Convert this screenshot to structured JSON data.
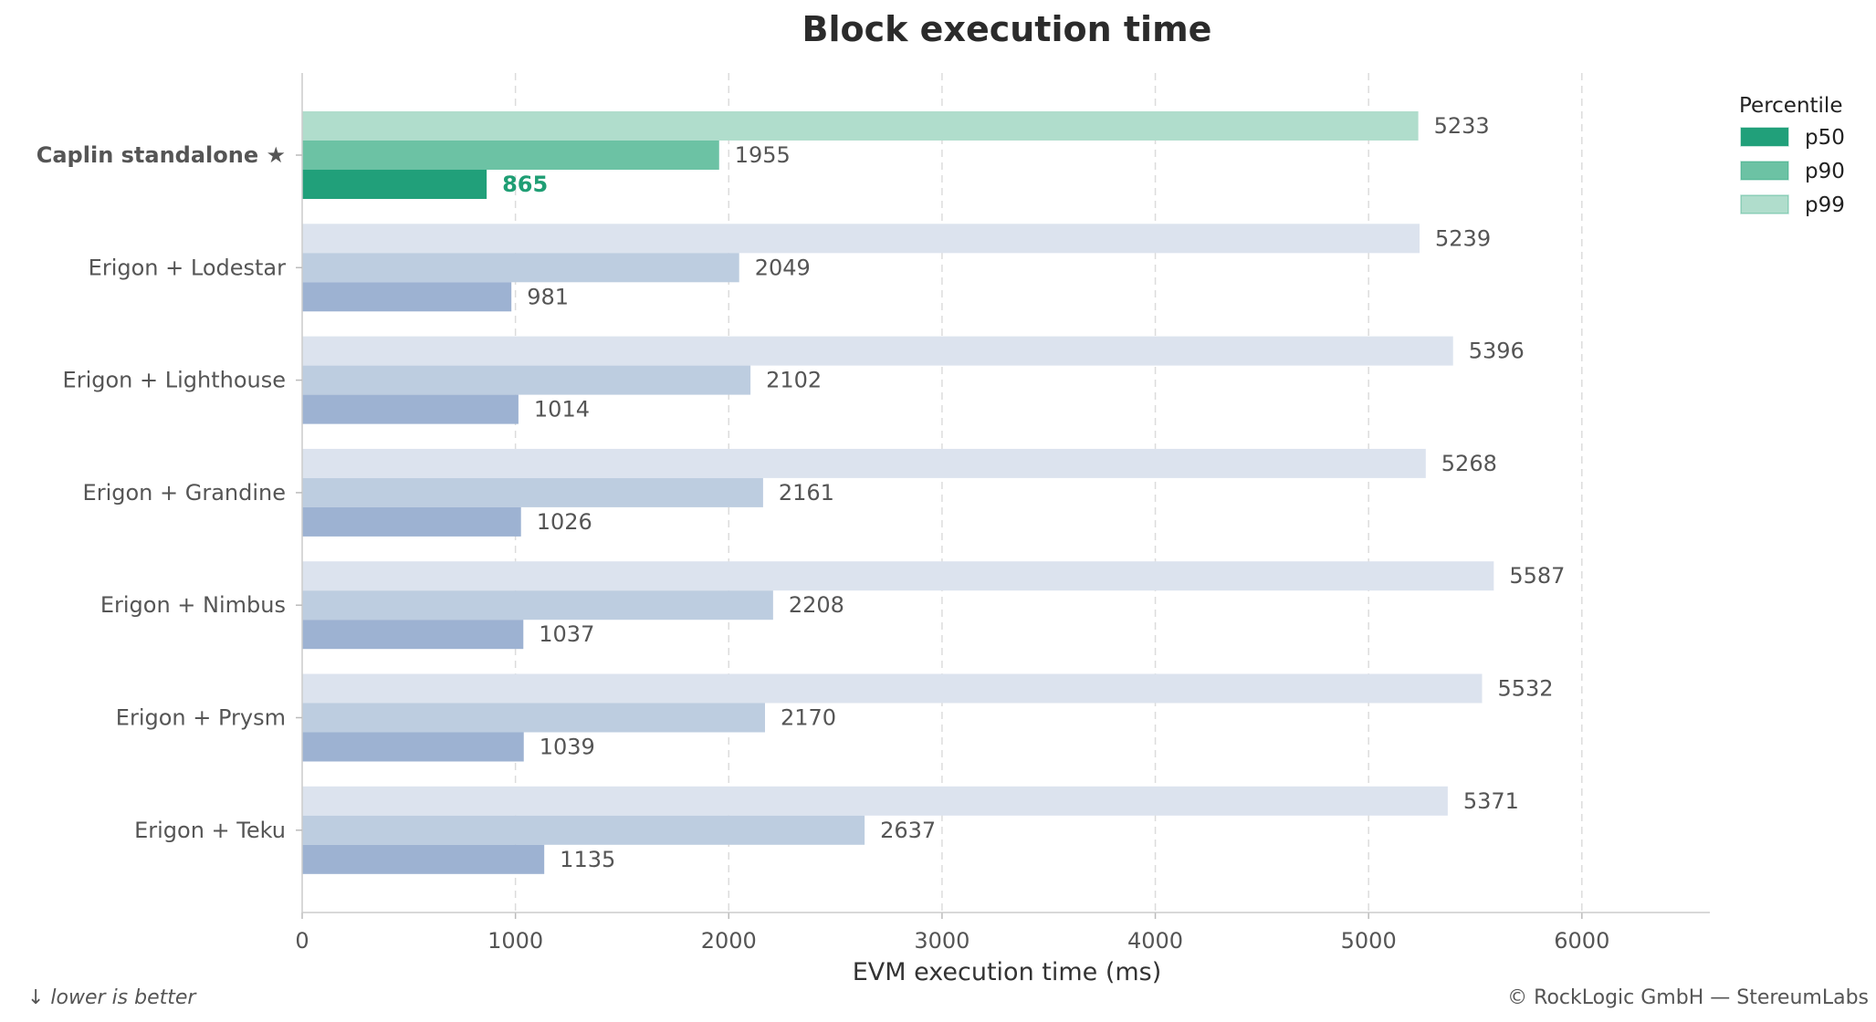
{
  "chart_data": {
    "type": "bar",
    "orientation": "horizontal",
    "title": "Block execution time",
    "xlabel": "EVM execution time (ms)",
    "ylabel": "",
    "xlim": [
      0,
      6600
    ],
    "x_ticks": [
      0,
      1000,
      2000,
      3000,
      4000,
      5000,
      6000
    ],
    "grid": "vertical dashed",
    "categories": [
      "Caplin standalone  ★",
      "Erigon + Lodestar",
      "Erigon + Lighthouse",
      "Erigon + Grandine",
      "Erigon + Nimbus",
      "Erigon + Prysm",
      "Erigon + Teku"
    ],
    "highlight_category": "Caplin standalone  ★",
    "series": [
      {
        "name": "p50",
        "values": [
          865,
          981,
          1014,
          1026,
          1037,
          1039,
          1135
        ]
      },
      {
        "name": "p90",
        "values": [
          1955,
          2049,
          2102,
          2161,
          2208,
          2170,
          2637
        ]
      },
      {
        "name": "p99",
        "values": [
          5233,
          5239,
          5396,
          5268,
          5587,
          5532,
          5371
        ]
      }
    ],
    "legend": {
      "title": "Percentile",
      "placement": "top-right",
      "entries": [
        "p50",
        "p90",
        "p99"
      ]
    },
    "colors": {
      "highlight": {
        "p50": "#21a07a",
        "p90": "#6cc2a4",
        "p99": "#b0ddcc"
      },
      "default": {
        "p50": "#9db2d2",
        "p90": "#bdcde0",
        "p99": "#dce3ee"
      }
    }
  },
  "footer": {
    "note_left": "↓ lower is better",
    "note_right": "© RockLogic GmbH — StereumLabs"
  }
}
